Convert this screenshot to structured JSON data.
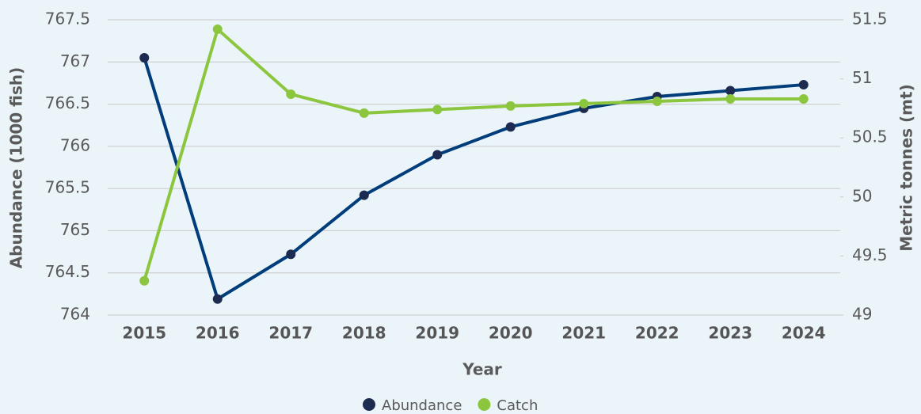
{
  "chart_data": {
    "type": "line",
    "xlabel": "Year",
    "ylabel": "Abundance (1000 fish)",
    "y2label": "Metric tonnes (mt)",
    "categories": [
      "2015",
      "2016",
      "2017",
      "2018",
      "2019",
      "2020",
      "2021",
      "2022",
      "2023",
      "2024"
    ],
    "series": [
      {
        "name": "Abundance",
        "color": "#003d7a",
        "values": [
          767.05,
          764.19,
          764.72,
          765.42,
          765.9,
          766.23,
          766.45,
          766.59,
          766.66,
          766.73
        ]
      },
      {
        "name": "Catch",
        "color": "#8cc63f",
        "axis": "y2",
        "values": [
          49.29,
          51.42,
          50.87,
          50.71,
          50.74,
          50.77,
          50.79,
          50.81,
          50.83,
          50.83
        ]
      }
    ],
    "ylim": [
      764,
      767.5
    ],
    "yticks": [
      764,
      764.5,
      765,
      765.5,
      766,
      766.5,
      767,
      767.5
    ],
    "y2lim": [
      49,
      51.5
    ],
    "y2ticks": [
      49,
      49.5,
      50,
      50.5,
      51,
      51.5
    ],
    "grid": true,
    "legend": "bottom"
  }
}
